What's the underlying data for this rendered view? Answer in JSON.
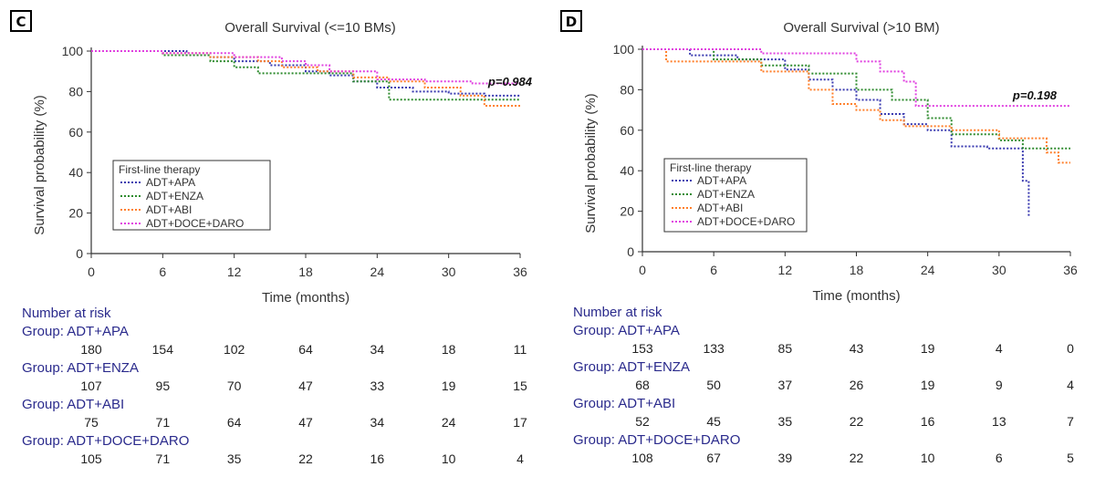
{
  "chart_data": [
    {
      "type": "line",
      "panel": "C",
      "title": "Overall Survival (<=10 BMs)",
      "xlabel": "Time (months)",
      "ylabel": "Survival probability (%)",
      "xlim": [
        0,
        36
      ],
      "ylim": [
        0,
        100
      ],
      "xticks": [
        0,
        6,
        12,
        18,
        24,
        30,
        36
      ],
      "yticks": [
        0,
        20,
        40,
        60,
        80,
        100
      ],
      "grid": false,
      "legend_title": "First-line therapy",
      "legend_position": "lower-left",
      "annotation": "p=0.984",
      "series": [
        {
          "name": "ADT+APA",
          "color": "#3a3ab0",
          "x": [
            0,
            8,
            10,
            12,
            15,
            18,
            20,
            22,
            24,
            27,
            30,
            33,
            36
          ],
          "y": [
            100,
            98,
            97,
            95,
            93,
            90,
            88,
            85,
            82,
            80,
            79,
            78,
            78
          ]
        },
        {
          "name": "ADT+ENZA",
          "color": "#2e8b2e",
          "x": [
            0,
            6,
            10,
            12,
            14,
            18,
            22,
            25,
            28,
            32,
            36
          ],
          "y": [
            100,
            98,
            95,
            92,
            89,
            89,
            85,
            76,
            76,
            76,
            76
          ]
        },
        {
          "name": "ADT+ABI",
          "color": "#ff7f2a",
          "x": [
            0,
            6,
            10,
            14,
            16,
            19,
            22,
            25,
            28,
            31,
            33,
            36
          ],
          "y": [
            100,
            99,
            97,
            95,
            92,
            90,
            87,
            85,
            82,
            78,
            73,
            73
          ]
        },
        {
          "name": "ADT+DOCE+DARO",
          "color": "#e040e0",
          "x": [
            0,
            6,
            12,
            16,
            18,
            20,
            24,
            28,
            32,
            34,
            36
          ],
          "y": [
            100,
            99,
            97,
            95,
            93,
            90,
            86,
            85,
            84,
            84,
            84
          ]
        }
      ],
      "risk_table": {
        "heading": "Number at risk",
        "groups": [
          {
            "label": "Group: ADT+APA",
            "values": [
              "180",
              "154",
              "102",
              "64",
              "34",
              "18",
              "11"
            ]
          },
          {
            "label": "Group: ADT+ENZA",
            "values": [
              "107",
              "95",
              "70",
              "47",
              "33",
              "19",
              "15"
            ]
          },
          {
            "label": "Group: ADT+ABI",
            "values": [
              "75",
              "71",
              "64",
              "47",
              "34",
              "24",
              "17"
            ]
          },
          {
            "label": "Group: ADT+DOCE+DARO",
            "values": [
              "105",
              "71",
              "35",
              "22",
              "16",
              "10",
              "4"
            ]
          }
        ]
      }
    },
    {
      "type": "line",
      "panel": "D",
      "title": "Overall Survival (>10 BM)",
      "xlabel": "Time (months)",
      "ylabel": "Survival probability (%)",
      "xlim": [
        0,
        36
      ],
      "ylim": [
        0,
        100
      ],
      "xticks": [
        0,
        6,
        12,
        18,
        24,
        30,
        36
      ],
      "yticks": [
        0,
        20,
        40,
        60,
        80,
        100
      ],
      "grid": false,
      "legend_title": "First-line therapy",
      "legend_position": "lower-left",
      "annotation": "p=0.198",
      "series": [
        {
          "name": "ADT+APA",
          "color": "#3a3ab0",
          "x": [
            0,
            4,
            8,
            12,
            14,
            16,
            18,
            20,
            22,
            24,
            26,
            29,
            31,
            32,
            32.5
          ],
          "y": [
            100,
            97,
            95,
            90,
            85,
            80,
            75,
            68,
            63,
            60,
            52,
            51,
            51,
            35,
            17
          ]
        },
        {
          "name": "ADT+ENZA",
          "color": "#2e8b2e",
          "x": [
            0,
            6,
            10,
            14,
            18,
            21,
            24,
            26,
            30,
            32,
            36
          ],
          "y": [
            100,
            95,
            92,
            88,
            80,
            75,
            66,
            58,
            55,
            51,
            51
          ]
        },
        {
          "name": "ADT+ABI",
          "color": "#ff7f2a",
          "x": [
            0,
            2,
            6,
            10,
            14,
            16,
            18,
            20,
            22,
            26,
            30,
            34,
            35,
            36
          ],
          "y": [
            100,
            94,
            94,
            89,
            80,
            73,
            70,
            65,
            62,
            60,
            56,
            49,
            44,
            44
          ]
        },
        {
          "name": "ADT+DOCE+DARO",
          "color": "#e040e0",
          "x": [
            0,
            10,
            18,
            20,
            22,
            23,
            36
          ],
          "y": [
            100,
            98,
            94,
            89,
            84,
            72,
            72
          ]
        }
      ],
      "risk_table": {
        "heading": "Number at risk",
        "groups": [
          {
            "label": "Group: ADT+APA",
            "values": [
              "153",
              "133",
              "85",
              "43",
              "19",
              "4",
              "0"
            ]
          },
          {
            "label": "Group: ADT+ENZA",
            "values": [
              "68",
              "50",
              "37",
              "26",
              "19",
              "9",
              "4"
            ]
          },
          {
            "label": "Group: ADT+ABI",
            "values": [
              "52",
              "45",
              "35",
              "22",
              "16",
              "13",
              "7"
            ]
          },
          {
            "label": "Group: ADT+DOCE+DARO",
            "values": [
              "108",
              "67",
              "39",
              "22",
              "10",
              "6",
              "5"
            ]
          }
        ]
      }
    }
  ]
}
